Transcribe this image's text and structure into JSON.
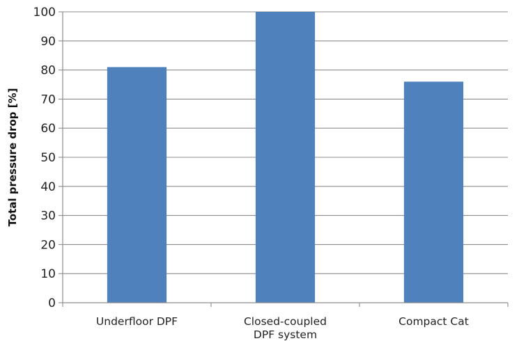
{
  "chart_data": {
    "type": "bar",
    "title": "",
    "xlabel": "",
    "ylabel": "Total pressure drop [%]",
    "categories": [
      [
        "Underfloor DPF"
      ],
      [
        "Closed-coupled",
        "DPF system"
      ],
      [
        "Compact Cat"
      ]
    ],
    "values": [
      81,
      100,
      76
    ],
    "ylim": [
      0,
      100
    ],
    "yticks": [
      "0",
      "10",
      "20",
      "30",
      "40",
      "50",
      "60",
      "70",
      "80",
      "90",
      "100"
    ],
    "grid": "horizontal",
    "legend": "none",
    "bar_color": "#4f81bd"
  }
}
